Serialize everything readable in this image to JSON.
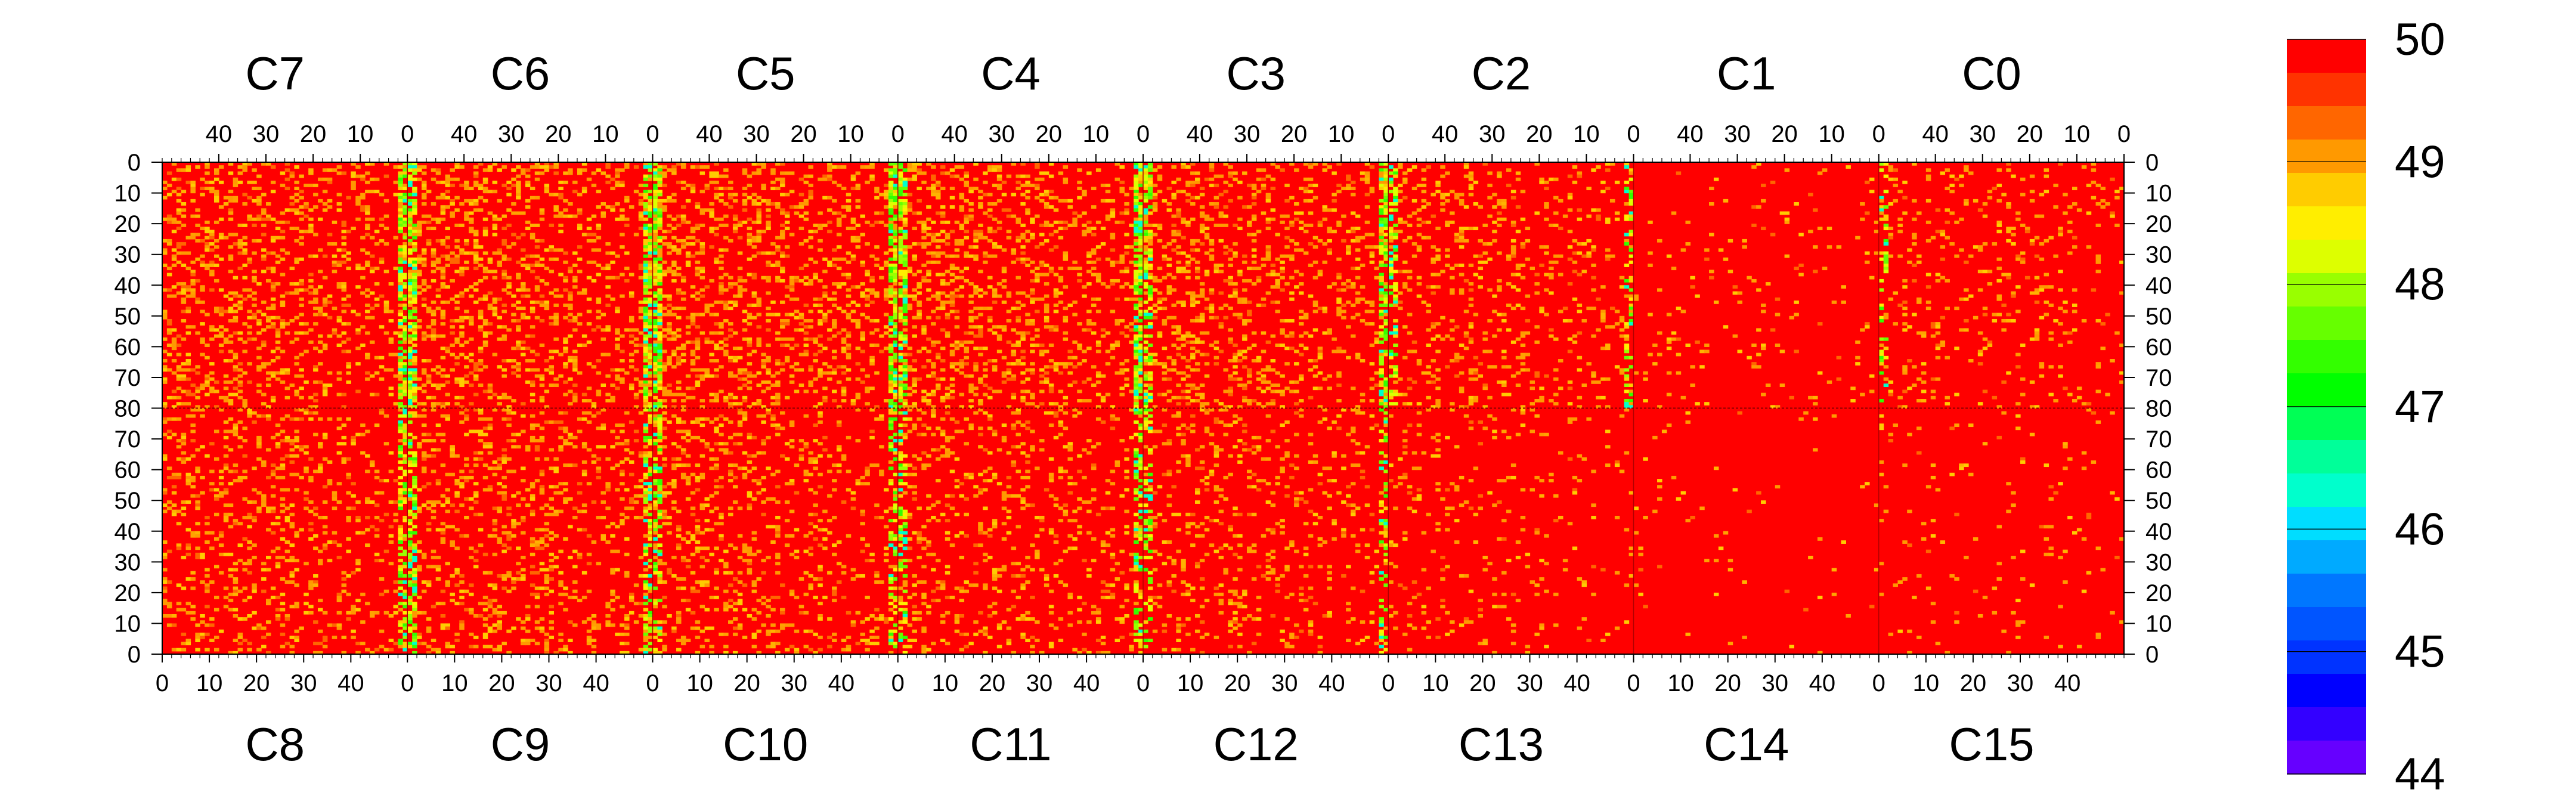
{
  "chart_data": {
    "type": "heatmap",
    "title": "",
    "xlabel": "",
    "ylabel": "",
    "z_range": [
      44,
      50
    ],
    "colorbar": {
      "ticks": [
        "50",
        "49",
        "48",
        "47",
        "46",
        "45",
        "44"
      ],
      "colors": [
        "#ff0000",
        "#ff3300",
        "#ff6600",
        "#ff9900",
        "#ffcc00",
        "#ffee00",
        "#ddff00",
        "#99ff00",
        "#66ff00",
        "#33ff00",
        "#00ff00",
        "#00ff55",
        "#00ff99",
        "#00ffcc",
        "#00ddff",
        "#00aaff",
        "#0077ff",
        "#0055ff",
        "#0033ff",
        "#0000ff",
        "#3300ff",
        "#6600ff"
      ]
    },
    "top_row": {
      "chips": [
        "C7",
        "C6",
        "C5",
        "C4",
        "C3",
        "C2",
        "C1",
        "C0"
      ],
      "x_ticks": [
        "40",
        "30",
        "20",
        "10",
        "0"
      ],
      "x_tick_values": [
        40,
        30,
        20,
        10,
        0
      ],
      "x_direction": "descending"
    },
    "bottom_row": {
      "chips": [
        "C8",
        "C9",
        "C10",
        "C11",
        "C12",
        "C13",
        "C14",
        "C15"
      ],
      "x_ticks": [
        "0",
        "10",
        "20",
        "30",
        "40"
      ],
      "x_tick_values": [
        0,
        10,
        20,
        30,
        40
      ],
      "x_direction": "ascending"
    },
    "columns_per_chip": 52,
    "y_ticks_top": [
      "0",
      "10",
      "20",
      "30",
      "40",
      "50",
      "60",
      "70",
      "80"
    ],
    "y_ticks_bottom": [
      "70",
      "60",
      "50",
      "40",
      "30",
      "20",
      "10",
      "0"
    ],
    "rows_per_half": 80,
    "background_value": 50,
    "chip_noise_level": {
      "C7": 0.28,
      "C6": 0.3,
      "C5": 0.3,
      "C4": 0.3,
      "C3": 0.26,
      "C2": 0.18,
      "C1": 0.05,
      "C0": 0.12,
      "C8": 0.22,
      "C9": 0.22,
      "C10": 0.2,
      "C11": 0.17,
      "C12": 0.15,
      "C13": 0.07,
      "C14": 0.02,
      "C15": 0.04
    },
    "edge_column_effect": "chip boundary columns show lower values (47-49) in chips C1-C12"
  }
}
